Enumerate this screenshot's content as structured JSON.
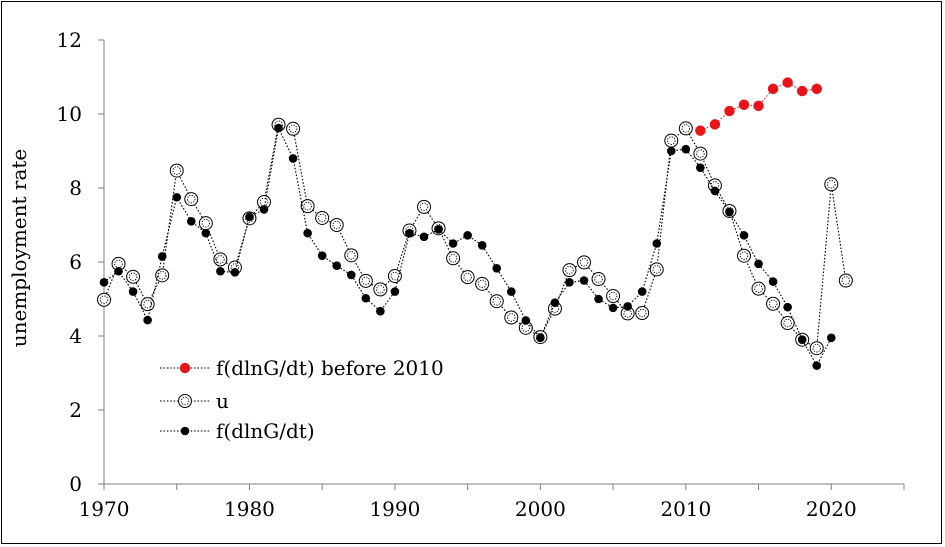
{
  "chart_data": {
    "type": "line",
    "title": "",
    "xlabel": "",
    "ylabel": "unemployment rate",
    "xlim": [
      1970,
      2025
    ],
    "ylim": [
      0,
      12
    ],
    "x_ticks": [
      1970,
      1980,
      1990,
      2000,
      2010,
      2020
    ],
    "y_ticks": [
      0,
      2,
      4,
      6,
      8,
      10,
      12
    ],
    "grid": false,
    "legend_position": "bottom-left",
    "colors": {
      "red_series": "#e8141a",
      "u_series": "#000000",
      "black_series": "#000000"
    },
    "series": [
      {
        "name": "f(dlnG/dt) before 2010",
        "marker": "filled-red",
        "x": [
          2011,
          2012,
          2013,
          2014,
          2015,
          2016,
          2017,
          2018,
          2019
        ],
        "y": [
          9.55,
          9.72,
          10.08,
          10.25,
          10.22,
          10.68,
          10.85,
          10.62,
          10.68
        ]
      },
      {
        "name": "u",
        "marker": "open-circle",
        "x": [
          1970,
          1971,
          1972,
          1973,
          1974,
          1975,
          1976,
          1977,
          1978,
          1979,
          1980,
          1981,
          1982,
          1983,
          1984,
          1985,
          1986,
          1987,
          1988,
          1989,
          1990,
          1991,
          1992,
          1993,
          1994,
          1995,
          1996,
          1997,
          1998,
          1999,
          2000,
          2001,
          2002,
          2003,
          2004,
          2005,
          2006,
          2007,
          2008,
          2009,
          2010,
          2011,
          2012,
          2013,
          2014,
          2015,
          2016,
          2017,
          2018,
          2019,
          2020,
          2021
        ],
        "y": [
          4.98,
          5.95,
          5.6,
          4.86,
          5.64,
          8.47,
          7.7,
          7.05,
          6.07,
          5.85,
          7.18,
          7.62,
          9.71,
          9.6,
          7.51,
          7.19,
          7.0,
          6.18,
          5.49,
          5.26,
          5.62,
          6.85,
          7.49,
          6.91,
          6.1,
          5.59,
          5.41,
          4.94,
          4.5,
          4.22,
          3.97,
          4.74,
          5.78,
          5.99,
          5.54,
          5.08,
          4.61,
          4.62,
          5.8,
          9.28,
          9.61,
          8.93,
          8.07,
          7.38,
          6.17,
          5.28,
          4.87,
          4.35,
          3.9,
          3.67,
          8.1,
          5.5
        ]
      },
      {
        "name": "f(dlnG/dt)",
        "marker": "filled-black",
        "x": [
          1970,
          1971,
          1972,
          1973,
          1974,
          1975,
          1976,
          1977,
          1978,
          1979,
          1980,
          1981,
          1982,
          1983,
          1984,
          1985,
          1986,
          1987,
          1988,
          1989,
          1990,
          1991,
          1992,
          1993,
          1994,
          1995,
          1996,
          1997,
          1998,
          1999,
          2000,
          2001,
          2002,
          2003,
          2004,
          2005,
          2006,
          2007,
          2008,
          2009,
          2010,
          2011,
          2012,
          2013,
          2014,
          2015,
          2016,
          2017,
          2018,
          2019,
          2020
        ],
        "y": [
          5.45,
          5.75,
          5.2,
          4.43,
          6.15,
          7.75,
          7.1,
          6.78,
          5.75,
          5.72,
          7.22,
          7.42,
          9.62,
          8.8,
          6.78,
          6.17,
          5.9,
          5.65,
          5.02,
          4.67,
          5.2,
          6.78,
          6.68,
          6.88,
          6.5,
          6.72,
          6.45,
          5.83,
          5.2,
          4.42,
          3.95,
          4.9,
          5.45,
          5.5,
          5.0,
          4.76,
          4.8,
          5.2,
          6.5,
          9.0,
          9.05,
          8.55,
          7.92,
          7.35,
          6.72,
          5.95,
          5.47,
          4.78,
          3.9,
          3.2,
          3.95
        ]
      }
    ]
  }
}
